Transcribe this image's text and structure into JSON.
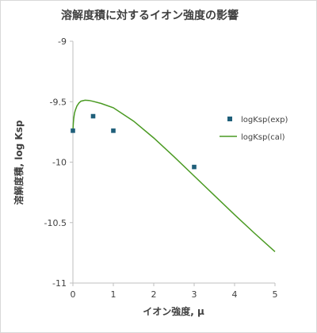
{
  "chart_data": {
    "type": "scatter",
    "title": "溶解度積に対するイオン強度の影響",
    "xlabel": "イオン強度, μ",
    "ylabel": "溶解度積, log Ksp",
    "xlim": [
      0,
      5
    ],
    "ylim": [
      -11,
      -9
    ],
    "x_ticks": [
      "0",
      "1",
      "2",
      "3",
      "4",
      "5"
    ],
    "y_ticks": [
      "-9",
      "-9.5",
      "-10",
      "-10.5",
      "-11"
    ],
    "grid": false,
    "legend_position": "right",
    "colors": {
      "exp": "#1f5f7a",
      "cal": "#4a9a22",
      "axis": "#bfbfbf",
      "text": "#404040"
    },
    "series": [
      {
        "name": "logKsp(exp)",
        "kind": "scatter",
        "x": [
          0,
          0.5,
          1,
          3
        ],
        "y": [
          -9.74,
          -9.62,
          -9.74,
          -10.04
        ]
      },
      {
        "name": "logKsp(cal)",
        "kind": "line",
        "x": [
          0,
          0.01,
          0.02,
          0.04,
          0.06,
          0.1,
          0.15,
          0.2,
          0.3,
          0.4,
          0.5,
          0.7,
          1.0,
          1.5,
          2.0,
          2.5,
          3.0,
          3.5,
          4.0,
          4.5,
          5.0
        ],
        "y": [
          -9.74,
          -9.68,
          -9.64,
          -9.595,
          -9.57,
          -9.535,
          -9.51,
          -9.496,
          -9.488,
          -9.49,
          -9.497,
          -9.515,
          -9.55,
          -9.66,
          -9.8,
          -9.955,
          -10.115,
          -10.275,
          -10.435,
          -10.59,
          -10.74
        ]
      }
    ]
  }
}
